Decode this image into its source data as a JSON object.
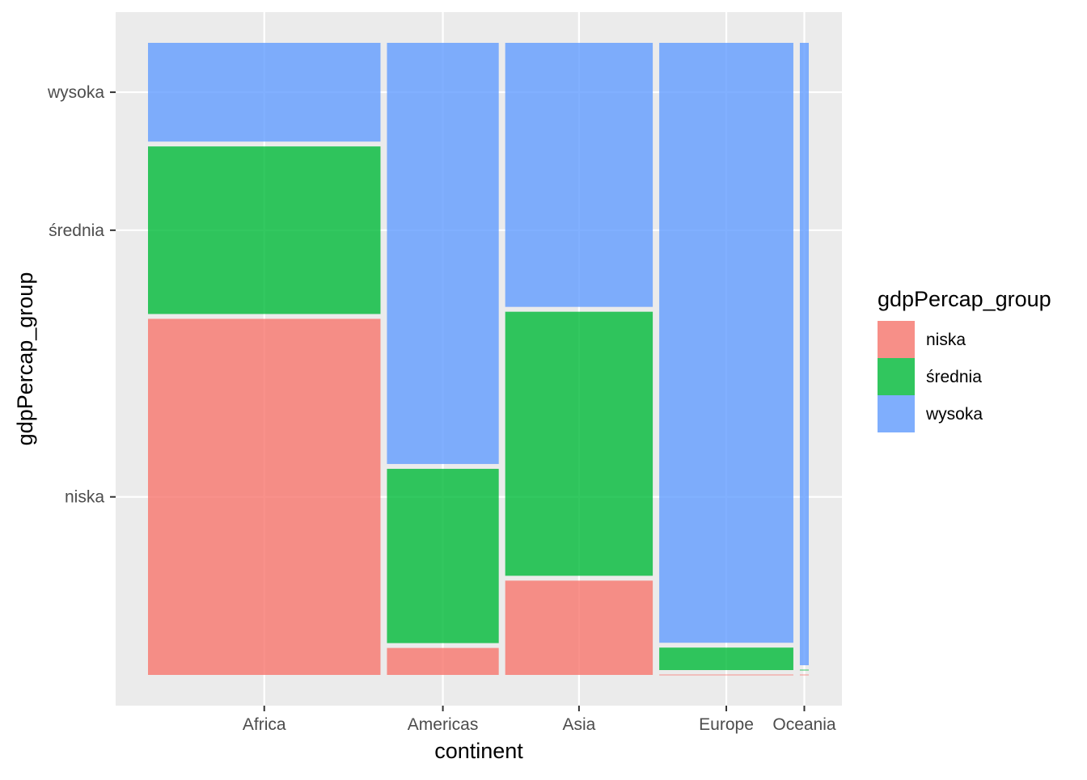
{
  "chart_data": {
    "type": "mosaic",
    "title": "",
    "xlabel": "continent",
    "ylabel": "gdpPercap_group",
    "categories": [
      "Africa",
      "Americas",
      "Asia",
      "Europe",
      "Oceania"
    ],
    "groups": [
      "niska",
      "średnia",
      "wysoka"
    ],
    "counts": [
      [
        357,
        168,
        99
      ],
      [
        13,
        84,
        203
      ],
      [
        60,
        168,
        168
      ],
      [
        0,
        13,
        347
      ],
      [
        0,
        0,
        24
      ]
    ],
    "legend": {
      "title": "gdpPercap_group",
      "entries": [
        "niska",
        "średnia",
        "wysoka"
      ],
      "placement": "right"
    },
    "colors": [
      "#F8766D",
      "#00BA38",
      "#619CFF"
    ],
    "grid": true
  }
}
